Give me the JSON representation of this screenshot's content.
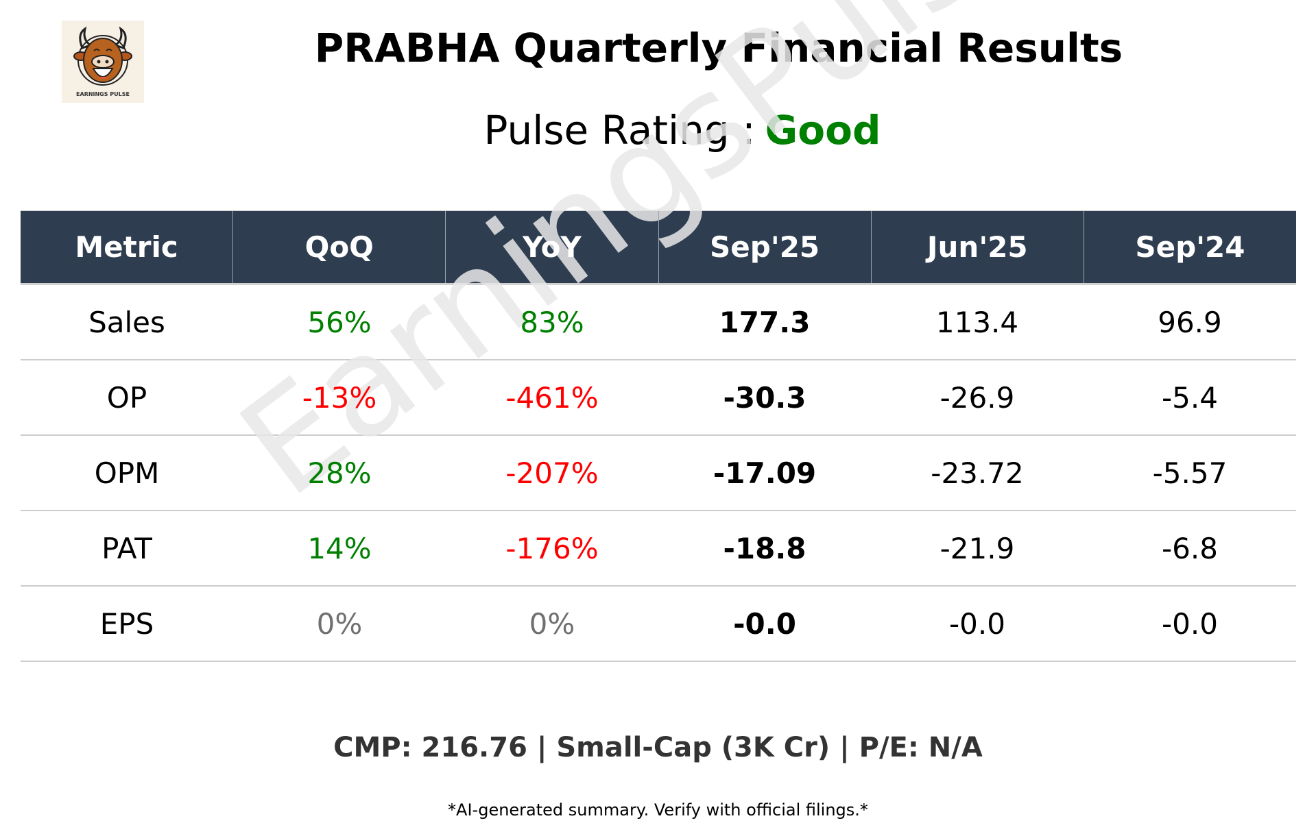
{
  "header": {
    "title": "PRABHA Quarterly Financial Results",
    "rating_label": "Pulse Rating :",
    "rating_value": "Good",
    "rating_color": "#008000",
    "logo_text": "EARNINGS PULSE"
  },
  "watermark": "EarningsPulse",
  "table": {
    "columns": [
      "Metric",
      "QoQ",
      "YoY",
      "Sep'25",
      "Jun'25",
      "Sep'24"
    ],
    "header_bg": "#2e3e50",
    "rows": [
      {
        "metric": "Sales",
        "qoq": "56%",
        "qoq_color": "#008000",
        "yoy": "83%",
        "yoy_color": "#008000",
        "sep25": "177.3",
        "jun25": "113.4",
        "sep24": "96.9"
      },
      {
        "metric": "OP",
        "qoq": "-13%",
        "qoq_color": "#ff0000",
        "yoy": "-461%",
        "yoy_color": "#ff0000",
        "sep25": "-30.3",
        "jun25": "-26.9",
        "sep24": "-5.4"
      },
      {
        "metric": "OPM",
        "qoq": "28%",
        "qoq_color": "#008000",
        "yoy": "-207%",
        "yoy_color": "#ff0000",
        "sep25": "-17.09",
        "jun25": "-23.72",
        "sep24": "-5.57"
      },
      {
        "metric": "PAT",
        "qoq": "14%",
        "qoq_color": "#008000",
        "yoy": "-176%",
        "yoy_color": "#ff0000",
        "sep25": "-18.8",
        "jun25": "-21.9",
        "sep24": "-6.8"
      },
      {
        "metric": "EPS",
        "qoq": "0%",
        "qoq_color": "#707070",
        "yoy": "0%",
        "yoy_color": "#707070",
        "sep25": "-0.0",
        "jun25": "-0.0",
        "sep24": "-0.0"
      }
    ]
  },
  "footer": {
    "market_info": "CMP: 216.76 | Small-Cap (3K Cr) | P/E: N/A",
    "disclaimer": "*AI-generated summary. Verify with official filings.*"
  }
}
